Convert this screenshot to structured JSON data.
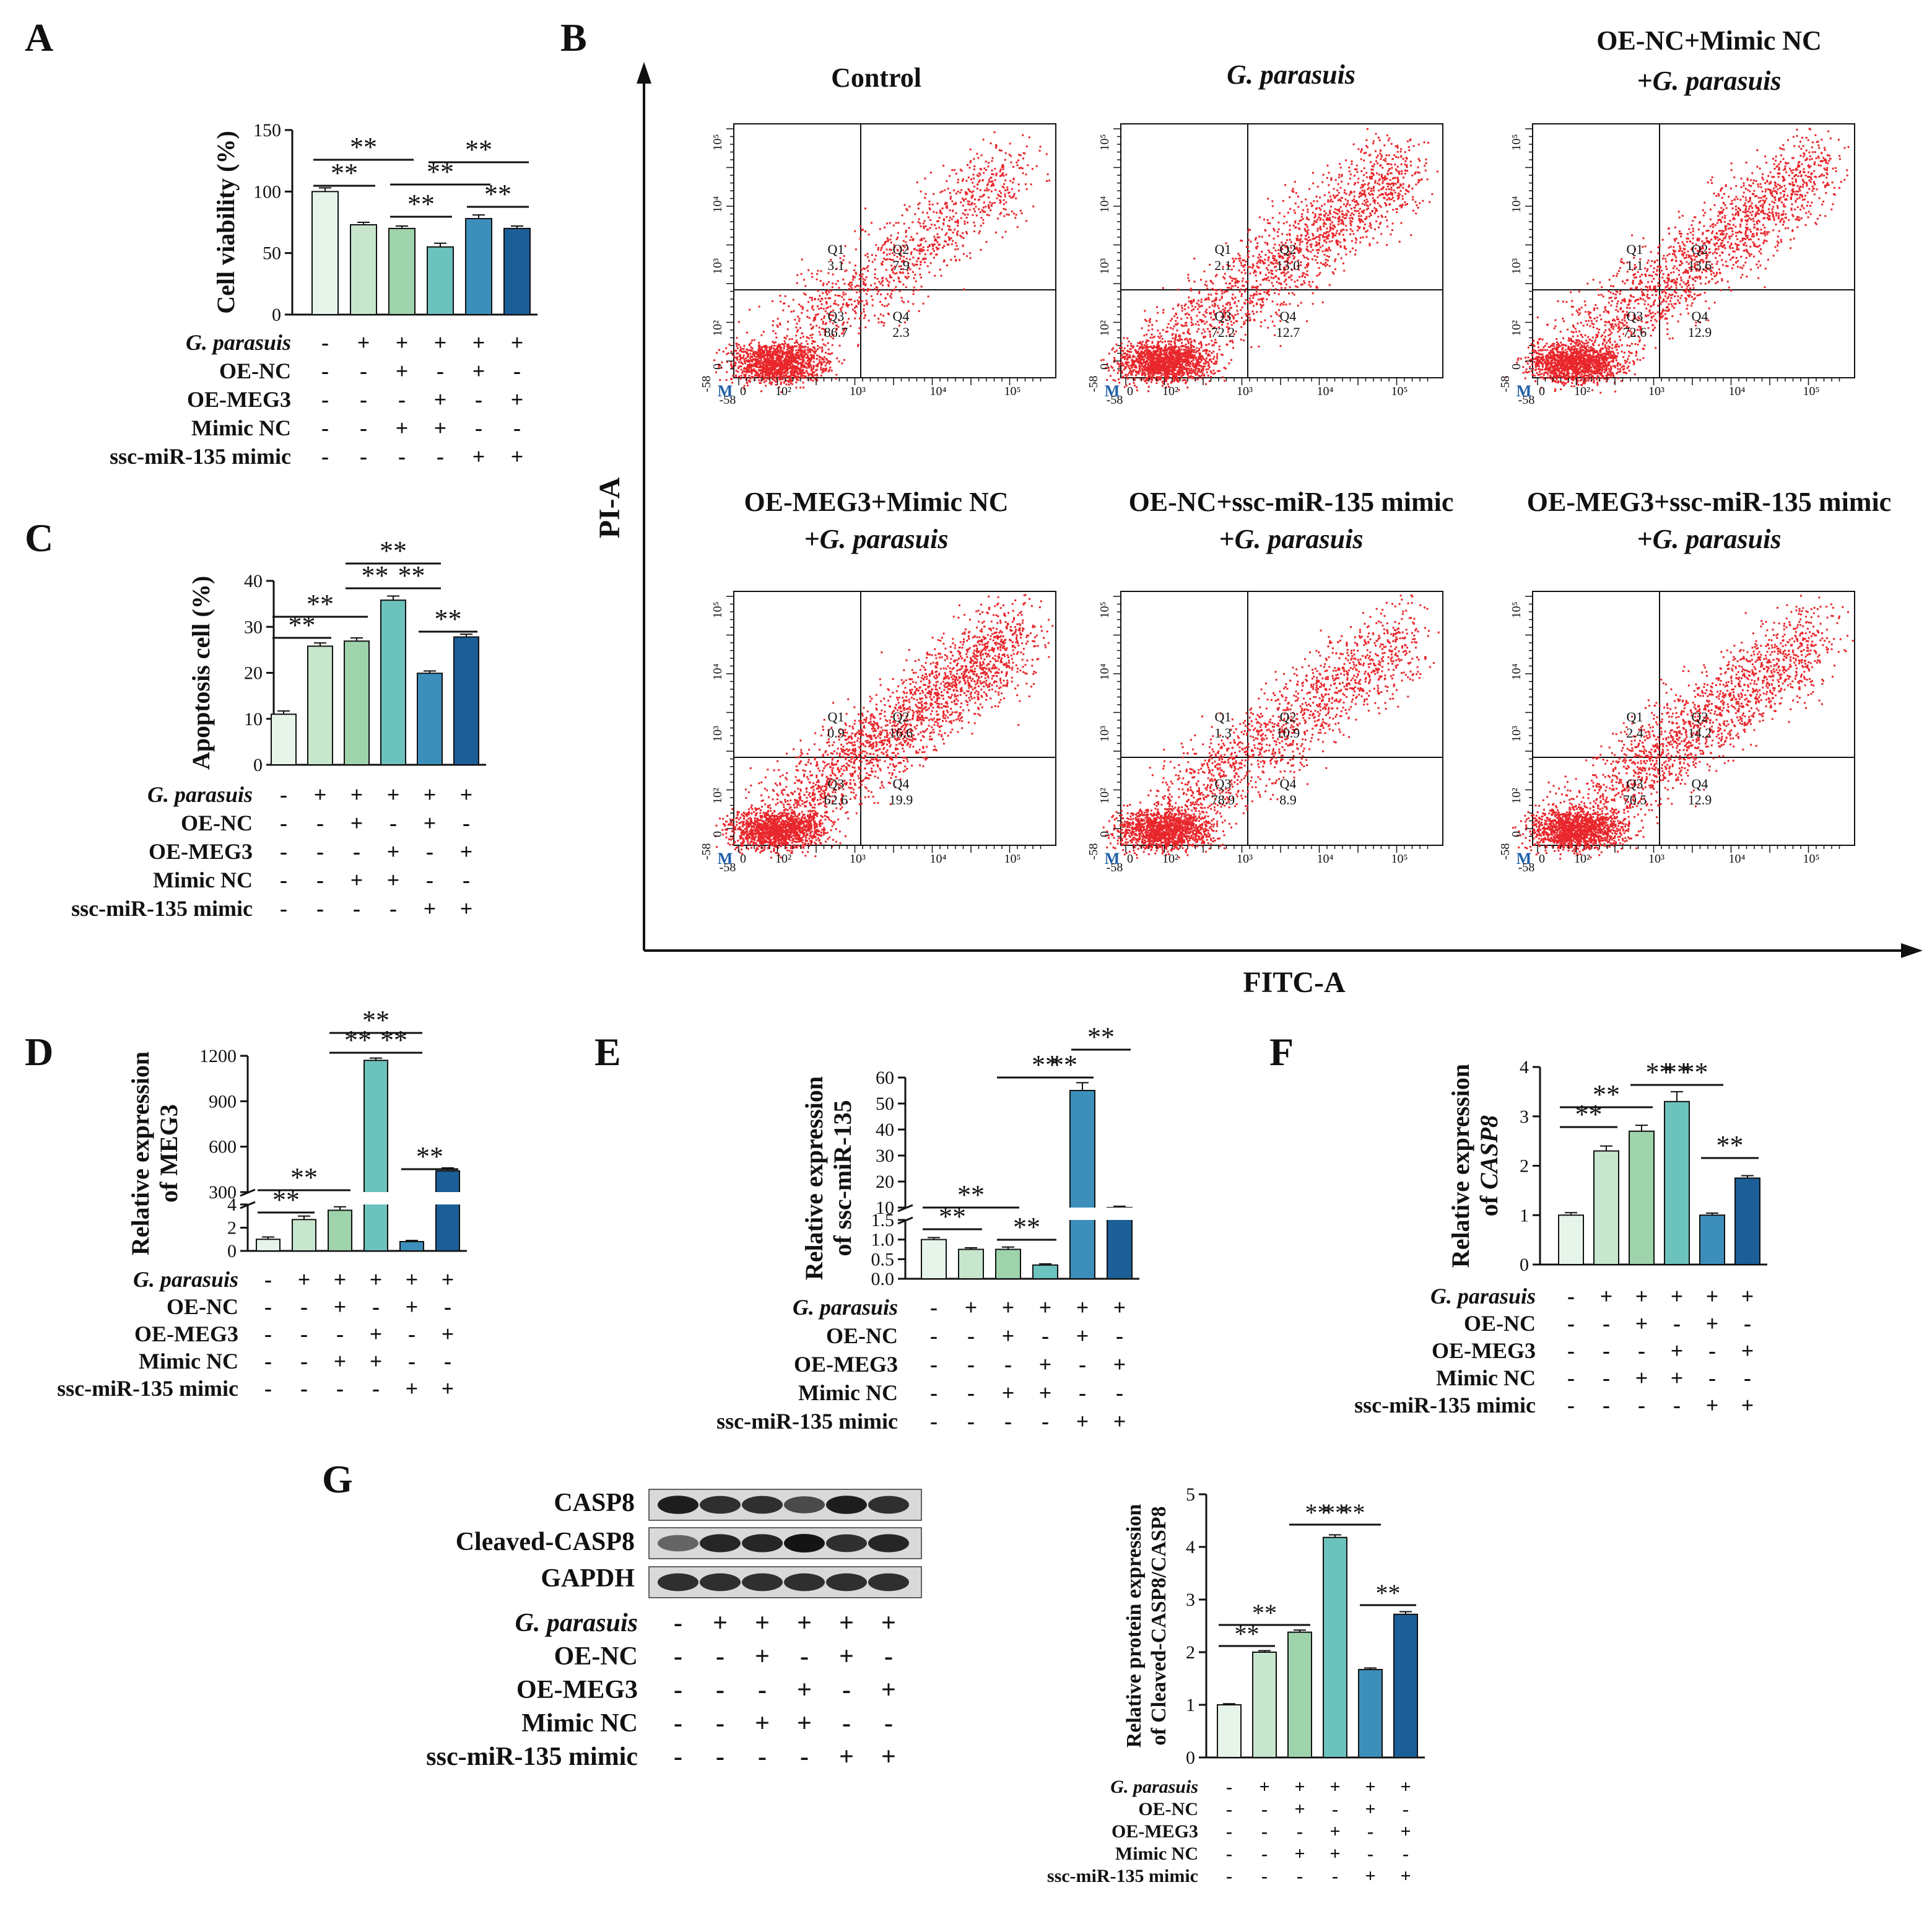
{
  "palette": [
    "#e6f4ea",
    "#c7e6cd",
    "#9ed3ac",
    "#6cc2bd",
    "#3d8fbb",
    "#1b5e98"
  ],
  "condition_rows": [
    {
      "label": "G. parasuis",
      "italic": true,
      "signs": [
        "-",
        "+",
        "+",
        "+",
        "+",
        "+"
      ]
    },
    {
      "label": "OE-NC",
      "italic": false,
      "signs": [
        "-",
        "-",
        "+",
        "-",
        "+",
        "-"
      ]
    },
    {
      "label": "OE-MEG3",
      "italic": false,
      "signs": [
        "-",
        "-",
        "-",
        "+",
        "-",
        "+"
      ]
    },
    {
      "label": "Mimic NC",
      "italic": false,
      "signs": [
        "-",
        "-",
        "+",
        "+",
        "-",
        "-"
      ]
    },
    {
      "label": "ssc-miR-135 mimic",
      "italic": false,
      "signs": [
        "-",
        "-",
        "-",
        "-",
        "+",
        "+"
      ]
    }
  ],
  "sig_mark": "**",
  "panels": {
    "A": {
      "letter": "A"
    },
    "B": {
      "letter": "B",
      "x_axis_label": "FITC-A",
      "y_axis_label": "PI-A",
      "tick_labels_x": [
        "-58",
        "0",
        "10²",
        "10³",
        "10⁴",
        "10⁵"
      ],
      "tick_labels_y": [
        "-58",
        "0",
        "10²",
        "10³",
        "10⁴",
        "10⁵"
      ],
      "gate_marker": "M",
      "plots": [
        {
          "title_lines": [
            "Control"
          ],
          "title_italic": [
            false
          ],
          "q1": "3.1",
          "q2": "7.9",
          "q3": "86.7",
          "q4": "2.3"
        },
        {
          "title_lines": [
            "G. parasuis"
          ],
          "title_italic": [
            true
          ],
          "q1": "2.1",
          "q2": "13.0",
          "q3": "72.2",
          "q4": "12.7"
        },
        {
          "title_lines": [
            "OE-NC+Mimic NC",
            "+G. parasuis"
          ],
          "title_italic": [
            false,
            true
          ],
          "q1": "1.1",
          "q2": "13.6",
          "q3": "72.6",
          "q4": "12.9"
        },
        {
          "title_lines": [
            "OE-MEG3+Mimic NC",
            "+G. parasuis"
          ],
          "title_italic": [
            false,
            true
          ],
          "q1": "0.9",
          "q2": "16.6",
          "q3": "62.6",
          "q4": "19.9"
        },
        {
          "title_lines": [
            "OE-NC+ssc-miR-135 mimic",
            "+G. parasuis"
          ],
          "title_italic": [
            false,
            true
          ],
          "q1": "1.3",
          "q2": "10.9",
          "q3": "78.9",
          "q4": "8.9"
        },
        {
          "title_lines": [
            "OE-MEG3+ssc-miR-135 mimic",
            "+G. parasuis"
          ],
          "title_italic": [
            false,
            true
          ],
          "q1": "2.4",
          "q2": "14.2",
          "q3": "70.5",
          "q4": "12.9"
        }
      ]
    },
    "C": {
      "letter": "C"
    },
    "D": {
      "letter": "D"
    },
    "E": {
      "letter": "E"
    },
    "F": {
      "letter": "F"
    },
    "G": {
      "letter": "G",
      "blot_labels": [
        "CASP8",
        "Cleaved-CASP8",
        "GAPDH"
      ],
      "blot_intensity": [
        [
          0.95,
          0.85,
          0.85,
          0.7,
          0.95,
          0.85
        ],
        [
          0.55,
          0.9,
          0.9,
          1.0,
          0.85,
          0.9
        ],
        [
          0.85,
          0.85,
          0.85,
          0.85,
          0.85,
          0.85
        ]
      ]
    }
  },
  "chart_data": [
    {
      "id": "A",
      "type": "bar",
      "title": "",
      "ylabel": "Cell viability (%)",
      "ylim": [
        0,
        150
      ],
      "yticks": [
        0,
        50,
        100,
        150
      ],
      "values": [
        100,
        73,
        70,
        55,
        78,
        70
      ],
      "errors": [
        3,
        2,
        2,
        3,
        3,
        2
      ],
      "significance": [
        {
          "from": 0,
          "to": 1,
          "label": "**"
        },
        {
          "from": 0,
          "to": 2,
          "label": "**"
        },
        {
          "from": 2,
          "to": 3,
          "label": "**"
        },
        {
          "from": 2,
          "to": 4,
          "label": "**"
        },
        {
          "from": 3,
          "to": 5,
          "label": "**"
        },
        {
          "from": 4,
          "to": 5,
          "label": "**"
        }
      ]
    },
    {
      "id": "C",
      "type": "bar",
      "title": "",
      "ylabel": "Apoptosis cell (%)",
      "ylim": [
        0,
        40
      ],
      "yticks": [
        0,
        10,
        20,
        30,
        40
      ],
      "values": [
        11,
        25.8,
        26.9,
        35.8,
        19.9,
        27.8
      ],
      "errors": [
        0.7,
        0.7,
        0.7,
        0.9,
        0.5,
        0.6
      ],
      "significance": [
        {
          "from": 0,
          "to": 1,
          "label": "**"
        },
        {
          "from": 0,
          "to": 2,
          "label": "**"
        },
        {
          "from": 2,
          "to": 3,
          "label": "**"
        },
        {
          "from": 2,
          "to": 4,
          "label": "**"
        },
        {
          "from": 3,
          "to": 4,
          "label": "**"
        },
        {
          "from": 4,
          "to": 5,
          "label": "**"
        }
      ]
    },
    {
      "id": "D",
      "type": "bar",
      "title": "",
      "ylabel": "Relative expression of MEG3",
      "broken_axis": {
        "low_ticks": [
          0,
          2,
          4
        ],
        "low_max": 4,
        "high_ticks": [
          300,
          600,
          900,
          1200
        ],
        "high_range": [
          300,
          1200
        ]
      },
      "values": [
        1,
        2.7,
        3.5,
        1170,
        0.8,
        440
      ],
      "errors": [
        0.2,
        0.3,
        0.3,
        15,
        0.1,
        20
      ],
      "significance": [
        {
          "from": 0,
          "to": 1,
          "label": "**"
        },
        {
          "from": 0,
          "to": 2,
          "label": "**"
        },
        {
          "from": 2,
          "to": 3,
          "label": "**"
        },
        {
          "from": 2,
          "to": 4,
          "label": "**"
        },
        {
          "from": 3,
          "to": 4,
          "label": "**"
        },
        {
          "from": 4,
          "to": 5,
          "label": "**"
        }
      ]
    },
    {
      "id": "E",
      "type": "bar",
      "title": "",
      "ylabel": "Relative expression of ssc-miR-135",
      "broken_axis": {
        "low_ticks": [
          0.0,
          0.5,
          1.0,
          1.5
        ],
        "low_max": 1.5,
        "high_ticks": [
          10,
          20,
          30,
          40,
          50,
          60
        ],
        "high_range": [
          10,
          60
        ]
      },
      "values": [
        1.0,
        0.75,
        0.75,
        0.35,
        55,
        10
      ],
      "errors": [
        0.05,
        0.04,
        0.06,
        0.03,
        3,
        0.5
      ],
      "significance": [
        {
          "from": 0,
          "to": 1,
          "label": "**"
        },
        {
          "from": 0,
          "to": 2,
          "label": "**"
        },
        {
          "from": 2,
          "to": 3,
          "label": "**"
        },
        {
          "from": 2,
          "to": 4,
          "label": "**"
        },
        {
          "from": 3,
          "to": 4,
          "label": "**"
        },
        {
          "from": 4,
          "to": 5,
          "label": "**"
        }
      ]
    },
    {
      "id": "F",
      "type": "bar",
      "title": "",
      "ylabel": "Relative expression of CASP8",
      "ylabel_italic_part": "CASP8",
      "ylim": [
        0,
        4
      ],
      "yticks": [
        0,
        1,
        2,
        3,
        4
      ],
      "values": [
        1.0,
        2.3,
        2.7,
        3.3,
        1.0,
        1.75
      ],
      "errors": [
        0.05,
        0.1,
        0.12,
        0.2,
        0.04,
        0.05
      ],
      "significance": [
        {
          "from": 0,
          "to": 1,
          "label": "**"
        },
        {
          "from": 0,
          "to": 2,
          "label": "**"
        },
        {
          "from": 2,
          "to": 3,
          "label": "**"
        },
        {
          "from": 2,
          "to": 4,
          "label": "**"
        },
        {
          "from": 3,
          "to": 4,
          "label": "**"
        },
        {
          "from": 4,
          "to": 5,
          "label": "**"
        }
      ]
    },
    {
      "id": "G",
      "type": "bar",
      "title": "",
      "ylabel": "Relative protein expression of Cleaved-CASP8/CASP8",
      "ylim": [
        0,
        5
      ],
      "yticks": [
        0,
        1,
        2,
        3,
        4,
        5
      ],
      "values": [
        1.0,
        2.0,
        2.38,
        4.18,
        1.67,
        2.72
      ],
      "errors": [
        0.02,
        0.03,
        0.04,
        0.05,
        0.03,
        0.05
      ],
      "significance": [
        {
          "from": 0,
          "to": 1,
          "label": "**"
        },
        {
          "from": 0,
          "to": 2,
          "label": "**"
        },
        {
          "from": 2,
          "to": 3,
          "label": "**"
        },
        {
          "from": 2,
          "to": 4,
          "label": "**"
        },
        {
          "from": 3,
          "to": 4,
          "label": "**"
        },
        {
          "from": 4,
          "to": 5,
          "label": "**"
        }
      ]
    }
  ]
}
